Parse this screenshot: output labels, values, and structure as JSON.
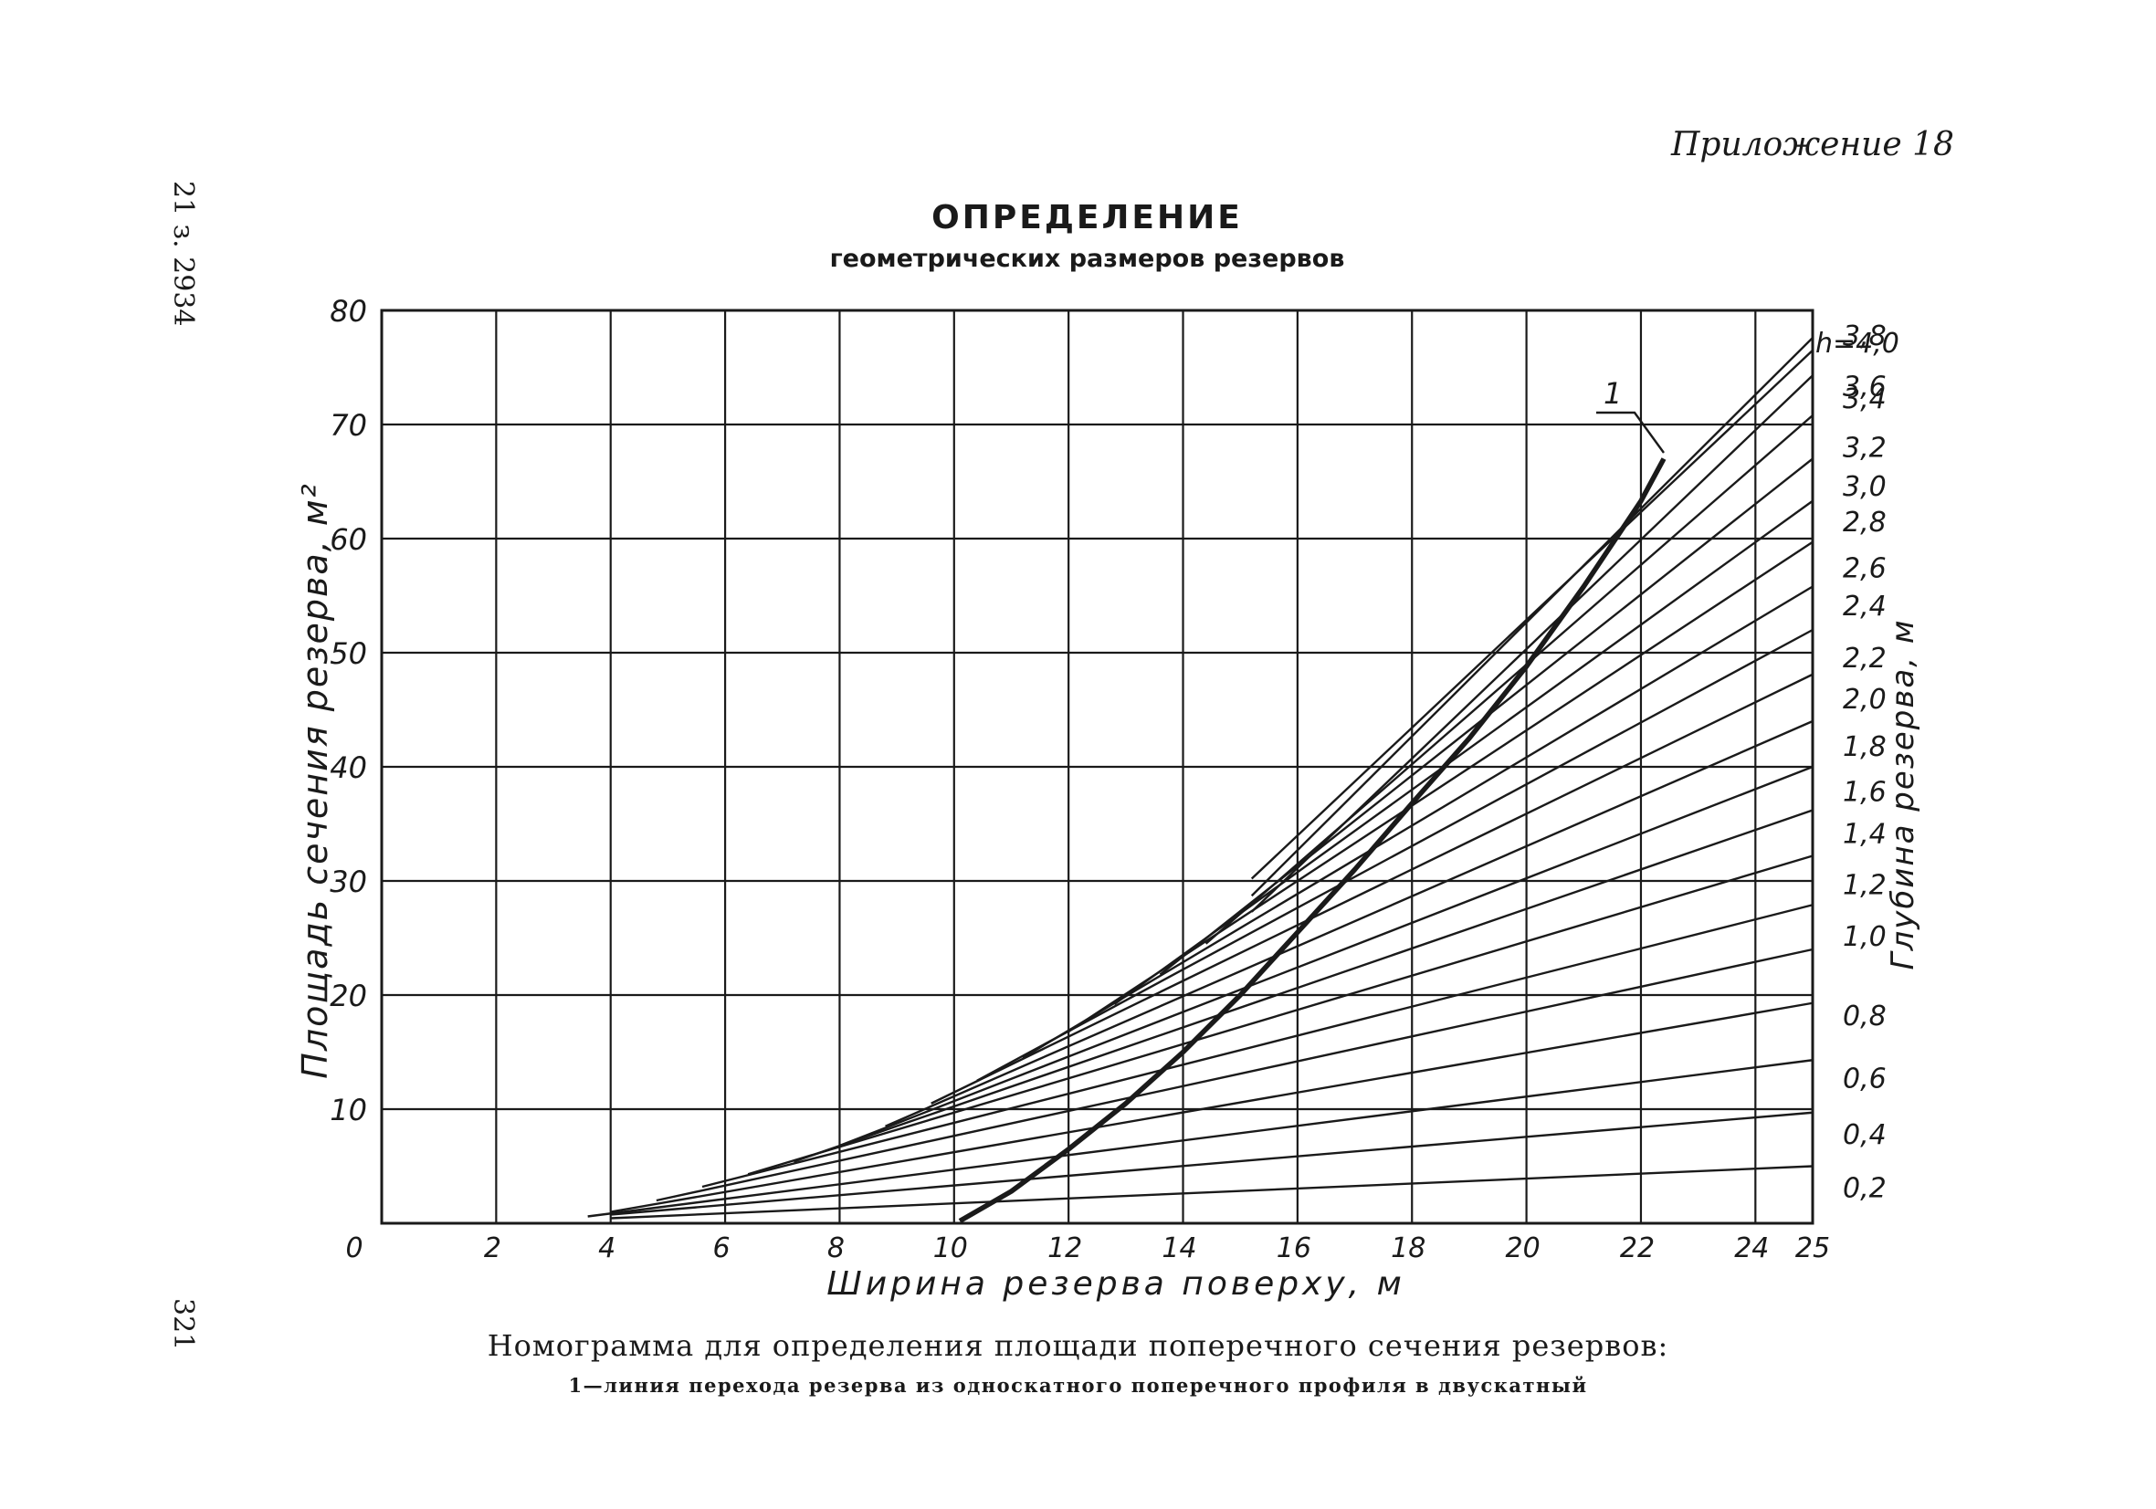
{
  "page": {
    "appendix": "Приложение 18",
    "side_code": "21 з. 2934",
    "page_number": "321"
  },
  "chart_data": {
    "type": "line",
    "title": "ОПРЕДЕЛЕНИЕ",
    "subtitle": "геометрических размеров резервов",
    "xlabel": "Ширина резерва поверху, м",
    "ylabel": "Площадь сечения резерва, м²",
    "right_axis_label": "Глубина резерва, м",
    "xlim": [
      0,
      25
    ],
    "ylim": [
      0,
      80
    ],
    "x_ticks": [
      0,
      2,
      4,
      6,
      8,
      10,
      12,
      14,
      16,
      18,
      20,
      22,
      24,
      25
    ],
    "x_tick_labels": [
      "0",
      "2",
      "4",
      "6",
      "8",
      "10",
      "12",
      "14",
      "16",
      "18",
      "20",
      "22",
      "24",
      "25"
    ],
    "y_ticks": [
      0,
      10,
      20,
      30,
      40,
      50,
      60,
      70,
      80
    ],
    "y_tick_labels": [
      "0",
      "10",
      "20",
      "30",
      "40",
      "50",
      "60",
      "70",
      "80"
    ],
    "grid": true,
    "series": [
      {
        "name": "0,2",
        "label": "0,2",
        "x": [
          4.0,
          25
        ],
        "y": [
          0.44,
          5.0
        ]
      },
      {
        "name": "0,4",
        "label": "0,4",
        "x": [
          4.0,
          25
        ],
        "y": [
          0.76,
          9.7
        ]
      },
      {
        "name": "0,6",
        "label": "0,6",
        "x": [
          3.6,
          25
        ],
        "y": [
          0.6,
          14.3
        ]
      },
      {
        "name": "0,8",
        "label": "0,8",
        "x": [
          4.0,
          25
        ],
        "y": [
          1.0,
          19.3
        ]
      },
      {
        "name": "1,0",
        "label": "1,0",
        "x": [
          4.8,
          25
        ],
        "y": [
          2.0,
          24.0
        ]
      },
      {
        "name": "1,2",
        "label": "1,2",
        "x": [
          5.6,
          25
        ],
        "y": [
          3.2,
          27.9
        ]
      },
      {
        "name": "1,4",
        "label": "1,4",
        "x": [
          6.4,
          25
        ],
        "y": [
          4.3,
          32.2
        ]
      },
      {
        "name": "1,6",
        "label": "1,6",
        "x": [
          7.2,
          25
        ],
        "y": [
          5.4,
          36.2
        ]
      },
      {
        "name": "1,8",
        "label": "1,8",
        "x": [
          8.0,
          25
        ],
        "y": [
          6.8,
          40.0
        ]
      },
      {
        "name": "2,0",
        "label": "2,0",
        "x": [
          8.8,
          25
        ],
        "y": [
          8.5,
          44.0
        ]
      },
      {
        "name": "2,2",
        "label": "2,2",
        "x": [
          9.6,
          25
        ],
        "y": [
          10.5,
          48.1
        ]
      },
      {
        "name": "2,4",
        "label": "2,4",
        "x": [
          10.4,
          25
        ],
        "y": [
          12.5,
          52.0
        ]
      },
      {
        "name": "2,6",
        "label": "2,6",
        "x": [
          11.2,
          25
        ],
        "y": [
          14.5,
          55.8
        ]
      },
      {
        "name": "2,8",
        "label": "2,8",
        "x": [
          12.0,
          25
        ],
        "y": [
          16.8,
          59.7
        ]
      },
      {
        "name": "3,0",
        "label": "3,0",
        "x": [
          12.8,
          25
        ],
        "y": [
          19.2,
          63.3
        ]
      },
      {
        "name": "3,2",
        "label": "3,2",
        "x": [
          13.6,
          25
        ],
        "y": [
          21.8,
          67.0
        ]
      },
      {
        "name": "3,4",
        "label": "3,4",
        "x": [
          14.4,
          25
        ],
        "y": [
          24.5,
          70.8
        ]
      },
      {
        "name": "3,6",
        "label": "3,6",
        "x": [
          15.2,
          25
        ],
        "y": [
          27.3,
          74.3
        ]
      },
      {
        "name": "3,8",
        "label": "3,8",
        "x": [
          15.2,
          25
        ],
        "y": [
          28.7,
          77.6
        ]
      },
      {
        "name": "h=4,0",
        "label": "h=4,0",
        "x": [
          15.2,
          25
        ],
        "y": [
          30.2,
          76.5
        ]
      }
    ],
    "curve_1": {
      "name": "1",
      "x": [
        10.1,
        11.0,
        12.0,
        13.0,
        14.0,
        15.0,
        16.0,
        17.0,
        18.0,
        19.0,
        20.0,
        21.0,
        22.0,
        22.4
      ],
      "y": [
        0.2,
        2.8,
        6.5,
        10.5,
        15.0,
        20.0,
        25.5,
        31.0,
        36.8,
        42.5,
        48.8,
        55.8,
        63.3,
        67.0
      ]
    },
    "legend": null
  },
  "caption": {
    "main": "Номограмма для определения площади поперечного сечения резервов:",
    "note": "1—линия перехода резерва из односкатного поперечного профиля в двускатный"
  },
  "colors": {
    "ink": "#1a1a1a",
    "paper": "#ffffff"
  }
}
